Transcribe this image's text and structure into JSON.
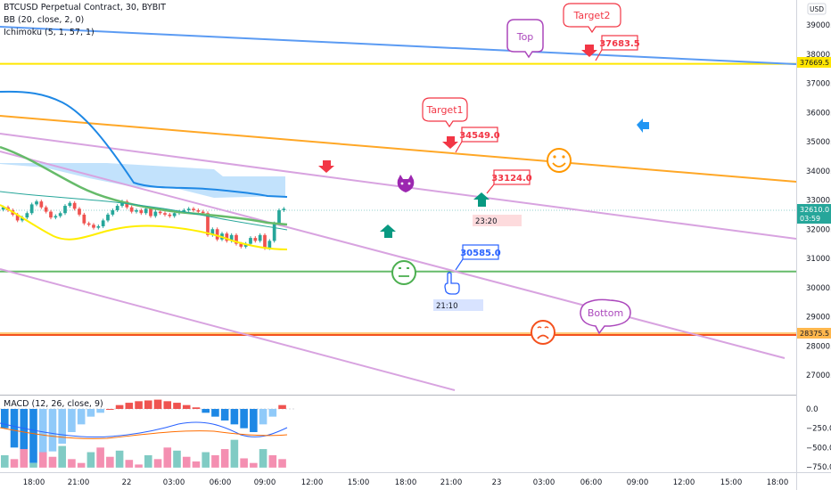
{
  "legend": {
    "symbol": "BTCUSD Perpetual Contract, 30, BYBIT",
    "bb": "BB (20, close, 2, 0)",
    "ichimoku": "Ichimoku (5, 1, 57, 1)",
    "macd": "MACD (12, 26, close, 9)"
  },
  "currency": "USD",
  "price_tag": {
    "price": "32610.0",
    "countdown": "03:59"
  },
  "level_tags": [
    {
      "price": "37669.5",
      "value": 37669.5,
      "color": "#ffe600"
    },
    {
      "price": "28375.5",
      "value": 28375.5,
      "color": "#ffb74d"
    }
  ],
  "annotations": {
    "top": "Top",
    "target2": "Target2",
    "target1": "Target1",
    "bottom": "Bottom"
  },
  "price_boxes": [
    {
      "text": "37683.5",
      "color": "#f23645"
    },
    {
      "text": "34549.0",
      "color": "#f23645"
    },
    {
      "text": "33124.0",
      "color": "#f23645"
    },
    {
      "text": "30585.0",
      "color": "#2962ff"
    }
  ],
  "time_boxes": [
    {
      "text": "23:20",
      "color": "#f23645"
    },
    {
      "text": "21:10",
      "color": "#2962ff"
    }
  ],
  "chart_data": {
    "type": "candlestick",
    "price_axis": {
      "ticks": [
        39000,
        38000,
        37000,
        36000,
        35000,
        34000,
        33000,
        32000,
        31000,
        30000,
        29000,
        28000,
        27000
      ],
      "tick_labels": [
        "39000.0",
        "38000.0",
        "37000.0",
        "36000.0",
        "35000.0",
        "34000.0",
        "33000.0",
        "32000.0",
        "31000.0",
        "30000.0",
        "29000.0",
        "28000.0",
        "27000.0"
      ]
    },
    "macd_axis": {
      "ticks": [
        0,
        -250,
        -500,
        -750
      ],
      "tick_labels": [
        "0.0",
        "−250.0",
        "−500.0",
        "−750.0"
      ]
    },
    "time_axis": [
      "18:00",
      "21:00",
      "22",
      "03:00",
      "06:00",
      "09:00",
      "12:00",
      "15:00",
      "18:00",
      "21:00",
      "23",
      "03:00",
      "06:00",
      "09:00",
      "12:00",
      "15:00",
      "18:00"
    ],
    "horizontal_levels": [
      37669.5,
      30550,
      28375.5
    ],
    "closes": [
      32750,
      32650,
      32500,
      32300,
      32400,
      32550,
      32850,
      32950,
      32750,
      32600,
      32400,
      32450,
      32550,
      32800,
      32900,
      32700,
      32500,
      32200,
      32150,
      32050,
      32100,
      32300,
      32500,
      32650,
      32800,
      32950,
      32750,
      32600,
      32650,
      32550,
      32700,
      32450,
      32600,
      32550,
      32500,
      32450,
      32550,
      32600,
      32650,
      32700,
      32650,
      32600,
      32550,
      31800,
      32000,
      31650,
      31850,
      31600,
      31800,
      31500,
      31400,
      31500,
      31700,
      31600,
      31800,
      31350,
      31600,
      32200,
      32650,
      32700
    ],
    "bb_upper": [
      32800,
      33250
    ],
    "bb_middle": [
      33050,
      32300
    ],
    "macd_histogram": [
      -250,
      -500,
      -650,
      -700,
      -600,
      -550,
      -450,
      -300,
      -200,
      -100,
      -50,
      0,
      50,
      80,
      100,
      110,
      120,
      100,
      80,
      50,
      20,
      -50,
      -100,
      -150,
      -200,
      -250,
      -300,
      -200,
      -100,
      50
    ]
  }
}
